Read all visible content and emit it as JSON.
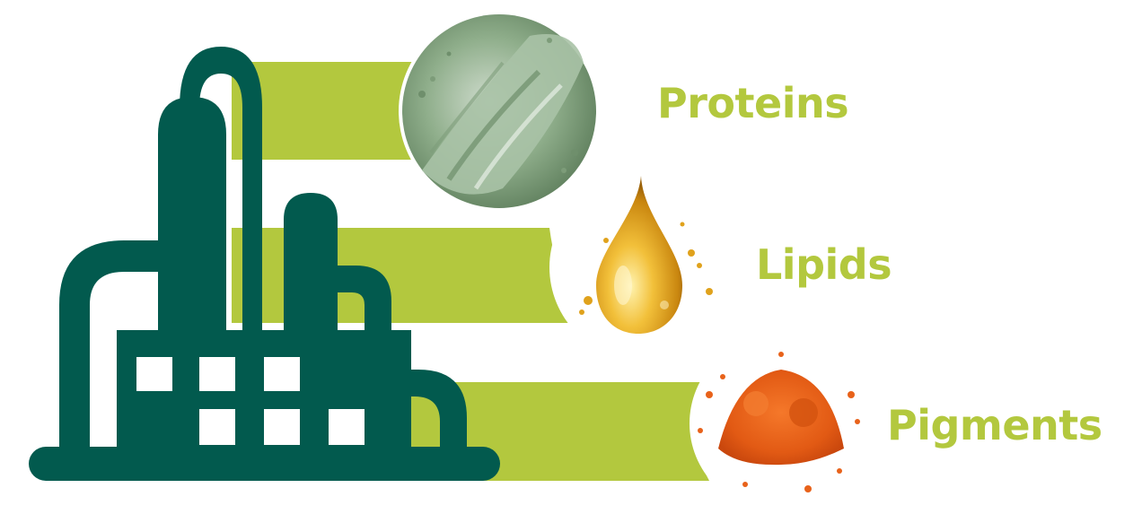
{
  "colors": {
    "refinery": "#025a4e",
    "band": "#b3c83e",
    "label": "#b3c83e",
    "protein_powder": "#8aa887",
    "lipid_oil": "#e0a21c",
    "pigment_powder": "#e8621a"
  },
  "icons": {
    "refinery": "refinery-icon",
    "proteins": "green-powder-image",
    "lipids": "oil-drop-image",
    "pigments": "orange-powder-image"
  },
  "products": [
    {
      "label": "Proteins"
    },
    {
      "label": "Lipids"
    },
    {
      "label": "Pigments"
    }
  ]
}
